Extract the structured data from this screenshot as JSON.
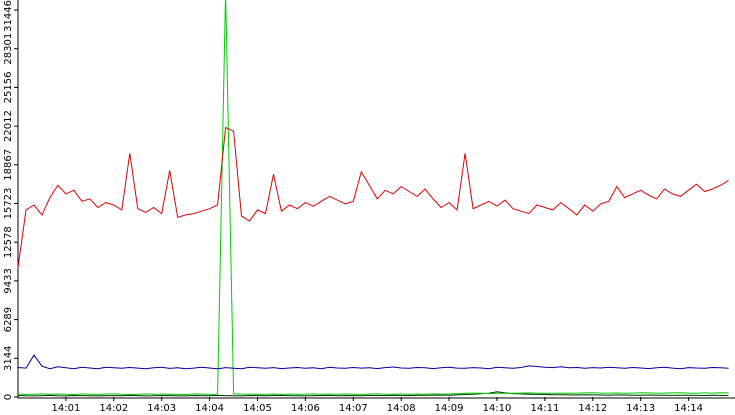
{
  "chart_data": {
    "type": "line",
    "xticks": [
      "14:01",
      "14:02",
      "14:03",
      "14:04",
      "14:05",
      "14:06",
      "14:07",
      "14:08",
      "14:09",
      "14:10",
      "14:11",
      "14:12",
      "14:13",
      "14:14"
    ],
    "ylim": [
      0,
      31446
    ],
    "yticks": [
      0,
      3144,
      6289,
      9433,
      12578,
      15723,
      18867,
      22012,
      25156,
      28301,
      31446
    ],
    "series": [
      {
        "color": "#e00000",
        "values": [
          10500,
          15200,
          15600,
          14800,
          16200,
          17200,
          16500,
          16800,
          15900,
          16100,
          15400,
          15800,
          15600,
          15200,
          19800,
          15300,
          15000,
          15400,
          14900,
          18400,
          14600,
          14800,
          14900,
          15100,
          15300,
          15600,
          21900,
          21600,
          14700,
          14300,
          15200,
          14900,
          18100,
          15100,
          15600,
          15300,
          15800,
          15500,
          15900,
          16300,
          16000,
          15700,
          15900,
          18300,
          17200,
          16100,
          16800,
          16500,
          17100,
          16700,
          16300,
          16900,
          16100,
          15400,
          15800,
          15200,
          19800,
          15300,
          15600,
          15900,
          15500,
          16000,
          15300,
          15100,
          14900,
          15600,
          15400,
          15200,
          15800,
          15300,
          14800,
          15600,
          15100,
          15700,
          15900,
          17100,
          16200,
          16500,
          16800,
          16400,
          16100,
          16900,
          16500,
          16300,
          16800,
          17300,
          16700,
          16900,
          17200,
          17600
        ]
      },
      {
        "color": "#0000a0",
        "values": [
          2400,
          2350,
          3400,
          2500,
          2300,
          2450,
          2380,
          2290,
          2410,
          2360,
          2300,
          2420,
          2380,
          2330,
          2400,
          2350,
          2290,
          2370,
          2410,
          2320,
          2380,
          2300,
          2350,
          2410,
          2360,
          2280,
          2390,
          2340,
          2300,
          2420,
          2370,
          2330,
          2390,
          2310,
          2360,
          2400,
          2340,
          2380,
          2300,
          2420,
          2360,
          2330,
          2400,
          2350,
          2380,
          2310,
          2390,
          2440,
          2360,
          2330,
          2400,
          2370,
          2310,
          2380,
          2420,
          2350,
          2330,
          2390,
          2360,
          2300,
          2410,
          2370,
          2340,
          2400,
          2530,
          2480,
          2420,
          2390,
          2450,
          2370,
          2400,
          2340,
          2390,
          2360,
          2420,
          2380,
          2330,
          2400,
          2360,
          2310,
          2380,
          2420,
          2350,
          2300,
          2390,
          2360,
          2340,
          2400,
          2370,
          2330
        ]
      },
      {
        "color": "#00d000",
        "values": [
          250,
          200,
          230,
          260,
          210,
          240,
          220,
          200,
          250,
          230,
          210,
          240,
          260,
          220,
          200,
          230,
          250,
          210,
          240,
          220,
          230,
          200,
          250,
          240,
          210,
          230,
          33000,
          260,
          220,
          240,
          210,
          230,
          250,
          200,
          240,
          220,
          230,
          260,
          210,
          240,
          220,
          250,
          230,
          210,
          240,
          260,
          220,
          230,
          250,
          210,
          240,
          230,
          260,
          220,
          250,
          280,
          300,
          320,
          300,
          280,
          310,
          290,
          300,
          320,
          330,
          310,
          300,
          290,
          320,
          310,
          300,
          330,
          340,
          320,
          310,
          330,
          300,
          320,
          340,
          330,
          310,
          320,
          330,
          340,
          320,
          310,
          330,
          320,
          340,
          330
        ]
      },
      {
        "color": "#003000",
        "values": [
          120,
          100,
          90,
          110,
          130,
          100,
          90,
          120,
          110,
          100,
          90,
          110,
          120,
          100,
          130,
          110,
          90,
          100,
          120,
          110,
          100,
          90,
          120,
          110,
          100,
          130,
          110,
          100,
          90,
          120,
          110,
          100,
          130,
          120,
          110,
          100,
          90,
          120,
          110,
          130,
          100,
          120,
          110,
          100,
          130,
          120,
          110,
          140,
          120,
          110,
          130,
          150,
          140,
          160,
          150,
          170,
          200,
          220,
          260,
          300,
          420,
          330,
          280,
          250,
          230,
          210,
          200,
          190,
          180,
          170,
          160,
          180,
          170,
          160,
          150,
          170,
          160,
          150,
          140,
          160,
          150,
          140,
          130,
          150,
          140,
          130,
          120,
          140,
          130,
          120
        ]
      }
    ]
  }
}
